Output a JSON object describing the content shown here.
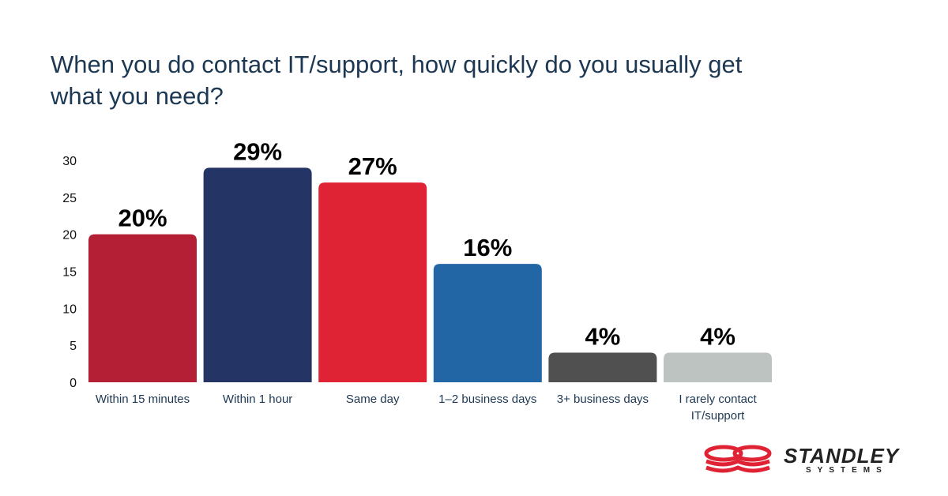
{
  "chart_data": {
    "type": "bar",
    "title": "When you do contact IT/support, how quickly do you usually get what you need?",
    "categories": [
      "Within 15 minutes",
      "Within 1 hour",
      "Same day",
      "1–2 business days",
      "3+ business days",
      "I rarely contact IT/support"
    ],
    "values": [
      20,
      29,
      27,
      16,
      4,
      4
    ],
    "data_labels": [
      "20%",
      "29%",
      "27%",
      "16%",
      "4%",
      "4%"
    ],
    "colors": [
      "#B51F36",
      "#243465",
      "#E02334",
      "#2366A6",
      "#505050",
      "#BCC3C0"
    ],
    "yticks": [
      0,
      5,
      10,
      15,
      20,
      25,
      30
    ],
    "ylim": [
      0,
      30
    ],
    "xlabel": "",
    "ylabel": "",
    "grid": false
  },
  "logo": {
    "name": "STANDLEY",
    "sub": "SYSTEMS",
    "color": "#E02334"
  }
}
